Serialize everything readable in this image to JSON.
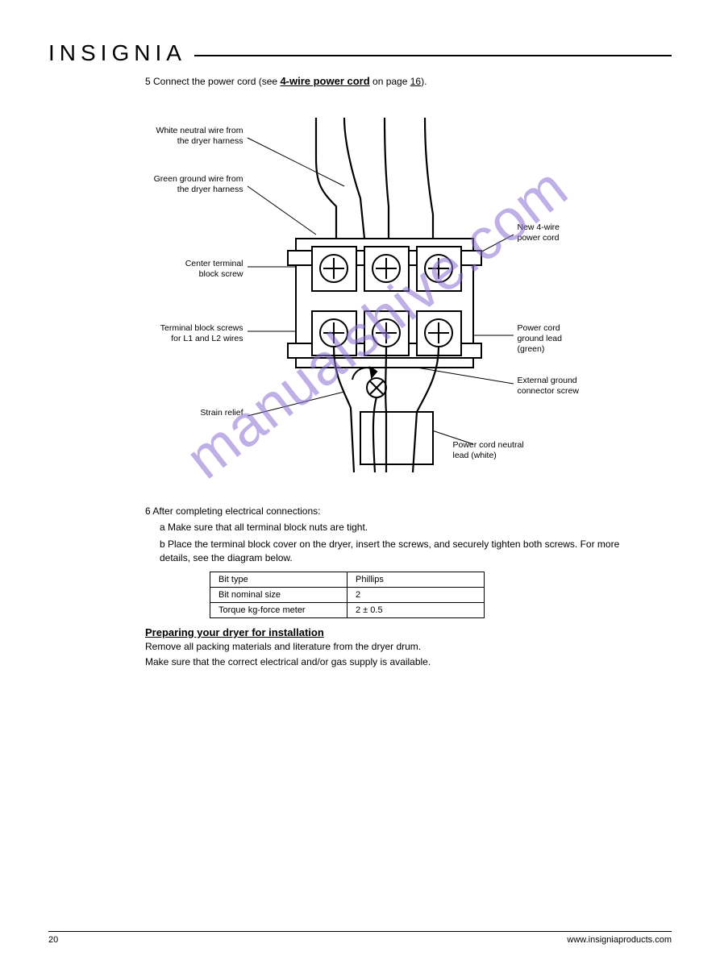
{
  "logo": "INSIGNIA",
  "step5": {
    "prefix": "5  Connect the power cord (see ",
    "link": "4-wire power cord",
    "suffix": " on page ",
    "page": "16",
    "tail": ")."
  },
  "diagram": {
    "labels": {
      "neutral_wire": "White neutral wire from\nthe dryer harness",
      "ground_wire": "Green ground wire from\nthe dryer harness",
      "center_screw": "Center terminal\nblock screw",
      "terminals": "Terminal block screws\nfor L1 and L2 wires",
      "strain_relief": "Strain relief",
      "new_cord": "New 4-wire\npower cord",
      "cord_ground": "Power cord\nground lead\n(green)",
      "ext_ground": "External ground\nconnector screw",
      "neutral_lead": "Power cord neutral\nlead (white)"
    },
    "colors": {
      "stroke": "#000000",
      "fill": "#ffffff"
    }
  },
  "step6": {
    "lead": "6  After completing electrical connections:",
    "a": "a  Make sure that all terminal block nuts are tight.",
    "b": "b  Place the terminal block cover on the dryer, insert the screws, and securely tighten both screws. For more details, see the diagram below."
  },
  "spec_table": {
    "rows": [
      [
        "Bit type",
        "Phillips"
      ],
      [
        "Bit nominal size",
        "2"
      ],
      [
        "Torque kg-force meter",
        "2 ± 0.5"
      ]
    ]
  },
  "prep": {
    "title": "Preparing your dryer for installation",
    "p1": "Remove all packing materials and literature from the dryer drum.",
    "p2": "Make sure that the correct electrical and/or gas supply is available."
  },
  "footer": {
    "page": "20",
    "site": "www.insigniaproducts.com"
  },
  "watermark": "manualshive.com"
}
